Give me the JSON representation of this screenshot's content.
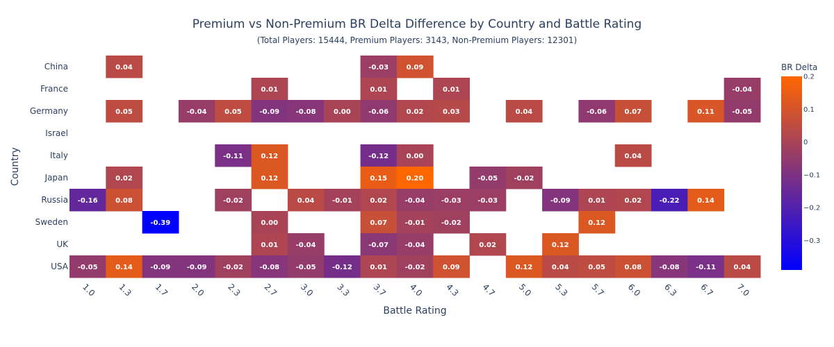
{
  "chart_data": {
    "type": "heatmap",
    "title": "Premium vs Non-Premium BR Delta Difference by Country and Battle Rating",
    "subtitle": "(Total Players: 15444, Premium Players: 3143, Non-Premium Players: 12301)",
    "xlabel": "Battle Rating",
    "ylabel": "Country",
    "x": [
      "1.0",
      "1.3",
      "1.7",
      "2.0",
      "2.3",
      "2.7",
      "3.0",
      "3.3",
      "3.7",
      "4.0",
      "4.3",
      "4.7",
      "5.0",
      "5.3",
      "5.7",
      "6.0",
      "6.3",
      "6.7",
      "7.0"
    ],
    "y": [
      "China",
      "France",
      "Germany",
      "Israel",
      "Italy",
      "Japan",
      "Russia",
      "Sweden",
      "UK",
      "USA"
    ],
    "z": [
      [
        null,
        0.04,
        null,
        null,
        null,
        null,
        null,
        null,
        -0.03,
        0.09,
        null,
        null,
        null,
        null,
        null,
        null,
        null,
        null,
        null
      ],
      [
        null,
        null,
        null,
        null,
        null,
        0.01,
        null,
        null,
        0.01,
        null,
        0.01,
        null,
        null,
        null,
        null,
        null,
        null,
        null,
        -0.04
      ],
      [
        null,
        0.05,
        null,
        -0.04,
        0.05,
        -0.09,
        -0.08,
        0.0,
        -0.06,
        0.02,
        0.03,
        null,
        0.04,
        null,
        -0.06,
        0.07,
        null,
        0.11,
        -0.05
      ],
      [
        null,
        null,
        null,
        null,
        null,
        null,
        null,
        null,
        null,
        null,
        null,
        null,
        null,
        null,
        null,
        null,
        null,
        null,
        null
      ],
      [
        null,
        null,
        null,
        null,
        -0.11,
        0.12,
        null,
        null,
        -0.12,
        0.0,
        null,
        null,
        null,
        null,
        null,
        0.04,
        null,
        null,
        null
      ],
      [
        null,
        0.02,
        null,
        null,
        null,
        0.12,
        null,
        null,
        0.15,
        0.2,
        null,
        -0.05,
        -0.02,
        null,
        null,
        null,
        null,
        null,
        null
      ],
      [
        -0.16,
        0.08,
        null,
        null,
        -0.02,
        null,
        0.04,
        -0.01,
        0.02,
        -0.04,
        -0.03,
        -0.03,
        null,
        -0.09,
        0.01,
        0.02,
        -0.22,
        0.14,
        null
      ],
      [
        null,
        null,
        -0.39,
        null,
        null,
        -0.0,
        null,
        null,
        0.07,
        -0.01,
        -0.02,
        null,
        null,
        null,
        0.12,
        null,
        null,
        null,
        null
      ],
      [
        null,
        null,
        null,
        null,
        null,
        0.01,
        -0.04,
        null,
        -0.07,
        -0.04,
        null,
        0.02,
        null,
        0.12,
        null,
        null,
        null,
        null,
        null
      ],
      [
        -0.05,
        0.14,
        -0.09,
        -0.09,
        -0.02,
        -0.08,
        -0.05,
        -0.12,
        0.01,
        -0.02,
        0.09,
        null,
        0.12,
        0.04,
        0.05,
        0.08,
        -0.08,
        -0.11,
        0.04
      ]
    ],
    "zrange": [
      -0.39,
      0.2
    ],
    "colorscale": [
      "#0000ff",
      "#ff6600"
    ],
    "colorbar": {
      "title": "BR Delta",
      "tick_values": [
        0.2,
        0.1,
        0,
        -0.1,
        -0.2,
        -0.3
      ],
      "tick_labels": [
        "0.2",
        "0.1",
        "0",
        "−0.1",
        "−0.2",
        "−0.3"
      ]
    },
    "legend": "right"
  }
}
